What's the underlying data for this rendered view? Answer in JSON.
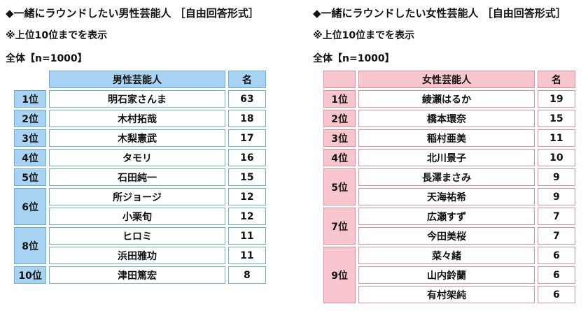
{
  "male": {
    "title": "◆一緒にラウンドしたい男性芸能人 ［自由回答形式］",
    "note": "※上位10位までを表示",
    "base": "全体【n=1000】",
    "col_name": "男性芸能人",
    "col_count": "名",
    "rows": [
      {
        "rank": "1位",
        "span": 1,
        "name": "明石家さんま",
        "count": "63"
      },
      {
        "rank": "2位",
        "span": 1,
        "name": "木村拓哉",
        "count": "18"
      },
      {
        "rank": "3位",
        "span": 1,
        "name": "木梨憲武",
        "count": "17"
      },
      {
        "rank": "4位",
        "span": 1,
        "name": "タモリ",
        "count": "16"
      },
      {
        "rank": "5位",
        "span": 1,
        "name": "石田純一",
        "count": "15"
      },
      {
        "rank": "6位",
        "span": 2,
        "name": "所ジョージ",
        "count": "12"
      },
      {
        "rank": "",
        "span": 0,
        "name": "小栗旬",
        "count": "12"
      },
      {
        "rank": "8位",
        "span": 2,
        "name": "ヒロミ",
        "count": "11"
      },
      {
        "rank": "",
        "span": 0,
        "name": "浜田雅功",
        "count": "11"
      },
      {
        "rank": "10位",
        "span": 1,
        "name": "津田篤宏",
        "count": "8"
      }
    ]
  },
  "female": {
    "title": "◆一緒にラウンドしたい女性芸能人 ［自由回答形式］",
    "note": "※上位10位までを表示",
    "base": "全体【n=1000】",
    "col_name": "女性芸能人",
    "col_count": "名",
    "rows": [
      {
        "rank": "1位",
        "span": 1,
        "name": "綾瀬はるか",
        "count": "19"
      },
      {
        "rank": "2位",
        "span": 1,
        "name": "橋本環奈",
        "count": "15"
      },
      {
        "rank": "3位",
        "span": 1,
        "name": "稲村亜美",
        "count": "11"
      },
      {
        "rank": "4位",
        "span": 1,
        "name": "北川景子",
        "count": "10"
      },
      {
        "rank": "5位",
        "span": 2,
        "name": "長澤まさみ",
        "count": "9"
      },
      {
        "rank": "",
        "span": 0,
        "name": "天海祐希",
        "count": "9"
      },
      {
        "rank": "7位",
        "span": 2,
        "name": "広瀬すず",
        "count": "7"
      },
      {
        "rank": "",
        "span": 0,
        "name": "今田美桜",
        "count": "7"
      },
      {
        "rank": "9位",
        "span": 3,
        "name": "菜々緒",
        "count": "6"
      },
      {
        "rank": "",
        "span": 0,
        "name": "山内鈴蘭",
        "count": "6"
      },
      {
        "rank": "",
        "span": 0,
        "name": "有村架純",
        "count": "6"
      }
    ]
  }
}
